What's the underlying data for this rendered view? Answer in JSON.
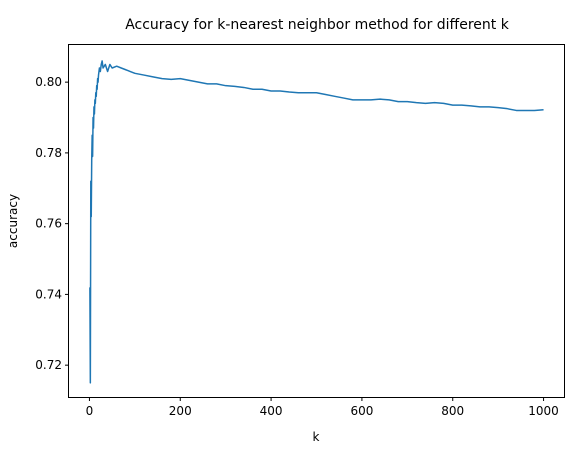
{
  "chart_data": {
    "type": "line",
    "title": "Accuracy for k-nearest neighbor method for different k",
    "xlabel": "k",
    "ylabel": "accuracy",
    "xlim": [
      -45,
      1045
    ],
    "ylim": [
      0.711,
      0.8105
    ],
    "xticks": [
      0,
      200,
      400,
      600,
      800,
      1000
    ],
    "xtick_labels": [
      "0",
      "200",
      "400",
      "600",
      "800",
      "1000"
    ],
    "yticks": [
      0.72,
      0.74,
      0.76,
      0.78,
      0.8
    ],
    "ytick_labels": [
      "0.72",
      "0.74",
      "0.76",
      "0.78",
      "0.80"
    ],
    "grid": false,
    "legend": "none",
    "line_color": "#1f77b4",
    "series": [
      {
        "x": [
          1,
          2,
          3,
          4,
          5,
          6,
          7,
          8,
          9,
          10,
          11,
          12,
          13,
          14,
          15,
          16,
          17,
          18,
          19,
          20,
          22,
          24,
          26,
          28,
          30,
          35,
          40,
          45,
          50,
          60,
          70,
          80,
          90,
          100,
          120,
          140,
          160,
          180,
          200,
          220,
          240,
          260,
          280,
          300,
          320,
          340,
          360,
          380,
          400,
          420,
          440,
          460,
          480,
          500,
          520,
          540,
          560,
          580,
          600,
          620,
          640,
          660,
          680,
          700,
          720,
          740,
          760,
          780,
          800,
          820,
          840,
          860,
          880,
          900,
          920,
          940,
          960,
          980,
          1000
        ],
        "y": [
          0.742,
          0.715,
          0.772,
          0.762,
          0.778,
          0.785,
          0.779,
          0.79,
          0.787,
          0.793,
          0.791,
          0.795,
          0.794,
          0.797,
          0.796,
          0.799,
          0.798,
          0.801,
          0.8,
          0.802,
          0.804,
          0.803,
          0.805,
          0.806,
          0.804,
          0.805,
          0.803,
          0.805,
          0.804,
          0.8045,
          0.804,
          0.8035,
          0.803,
          0.8025,
          0.802,
          0.8015,
          0.801,
          0.8008,
          0.801,
          0.8005,
          0.8,
          0.7995,
          0.7995,
          0.799,
          0.7988,
          0.7985,
          0.798,
          0.798,
          0.7975,
          0.7975,
          0.7972,
          0.797,
          0.797,
          0.797,
          0.7965,
          0.796,
          0.7955,
          0.795,
          0.795,
          0.795,
          0.7952,
          0.795,
          0.7945,
          0.7945,
          0.7942,
          0.794,
          0.7942,
          0.794,
          0.7935,
          0.7935,
          0.7933,
          0.793,
          0.793,
          0.7928,
          0.7925,
          0.792,
          0.792,
          0.792,
          0.7922
        ]
      }
    ]
  }
}
